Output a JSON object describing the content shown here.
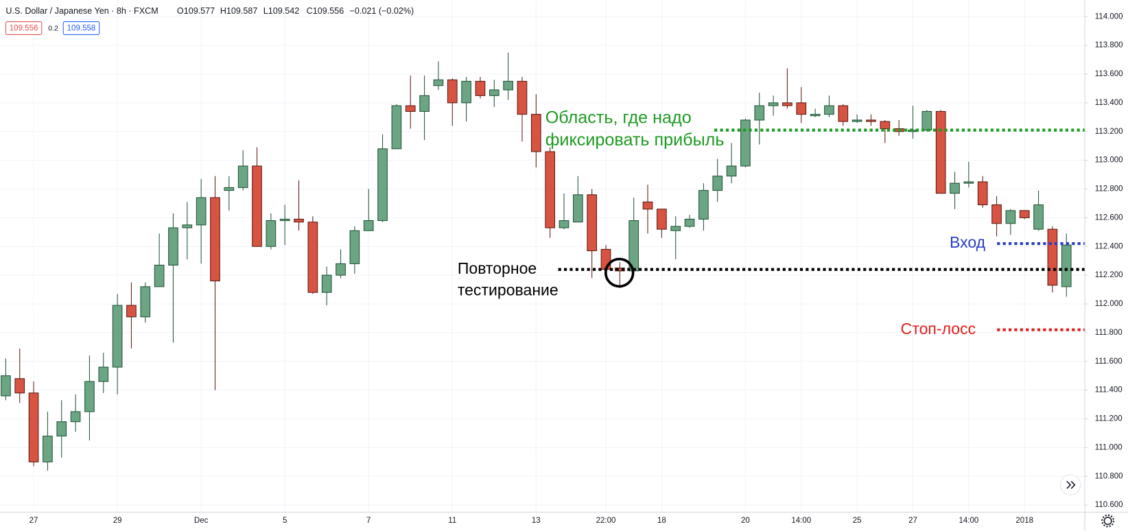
{
  "chart_data": {
    "type": "candlestick",
    "title": "U.S. Dollar / Japanese Yen · 8h · FXCM",
    "ohlc_readout": [
      "O109.577",
      "H109.587",
      "L109.542",
      "C109.556",
      "−0.021 (−0.02%)"
    ],
    "price_badges": [
      "109.556",
      "0.2",
      "109.558"
    ],
    "categories": [
      null,
      null,
      "27",
      null,
      null,
      null,
      null,
      null,
      "29",
      null,
      null,
      null,
      null,
      null,
      "Dec",
      null,
      null,
      null,
      null,
      null,
      "5",
      null,
      null,
      null,
      null,
      null,
      "7",
      null,
      null,
      null,
      null,
      null,
      "11",
      null,
      null,
      null,
      null,
      null,
      "13",
      null,
      null,
      null,
      null,
      "22:00",
      null,
      null,
      null,
      "18",
      null,
      null,
      null,
      null,
      null,
      "20",
      null,
      null,
      null,
      "14:00",
      null,
      null,
      null,
      "25",
      null,
      null,
      null,
      "27",
      null,
      null,
      null,
      "14:00",
      null,
      null,
      null,
      "2018",
      null,
      null,
      null
    ],
    "open": [
      111.36,
      111.48,
      111.38,
      110.9,
      111.08,
      111.18,
      111.25,
      111.46,
      111.56,
      111.99,
      111.91,
      112.12,
      112.27,
      112.53,
      112.55,
      112.74,
      112.79,
      112.81,
      112.96,
      112.4,
      112.58,
      112.59,
      112.57,
      112.08,
      112.2,
      112.28,
      112.51,
      112.58,
      113.08,
      113.38,
      113.34,
      113.52,
      113.56,
      113.4,
      113.55,
      113.45,
      113.49,
      113.55,
      113.32,
      113.06,
      112.53,
      112.57,
      112.76,
      112.38,
      112.25,
      112.23,
      112.71,
      112.66,
      112.51,
      112.54,
      112.59,
      112.79,
      112.89,
      112.96,
      113.28,
      113.38,
      113.4,
      113.4,
      113.31,
      113.32,
      113.38,
      113.27,
      113.28,
      113.27,
      113.22,
      113.2,
      113.21,
      113.34,
      112.77,
      112.84,
      112.85,
      112.69,
      112.56,
      112.65,
      112.52,
      112.52,
      112.12
    ],
    "high": [
      111.62,
      111.69,
      111.46,
      111.25,
      111.33,
      111.37,
      111.64,
      111.66,
      112.07,
      112.15,
      112.15,
      112.49,
      112.63,
      112.71,
      112.87,
      112.89,
      112.89,
      113.07,
      113.09,
      112.63,
      112.69,
      112.86,
      112.61,
      112.26,
      112.38,
      112.54,
      112.8,
      113.18,
      113.39,
      113.59,
      113.59,
      113.69,
      113.57,
      113.58,
      113.58,
      113.56,
      113.75,
      113.58,
      113.46,
      113.09,
      112.77,
      112.89,
      112.8,
      112.41,
      112.29,
      112.74,
      112.83,
      112.66,
      112.61,
      112.62,
      112.84,
      113.01,
      113.12,
      113.29,
      113.47,
      113.45,
      113.64,
      113.51,
      113.36,
      113.45,
      113.39,
      113.32,
      113.32,
      113.28,
      113.28,
      113.38,
      113.35,
      113.35,
      112.92,
      112.99,
      112.89,
      112.75,
      112.66,
      112.65,
      112.79,
      112.54,
      112.49
    ],
    "low": [
      111.33,
      111.31,
      110.87,
      110.84,
      110.93,
      111.11,
      111.05,
      111.38,
      111.37,
      111.69,
      111.87,
      112.12,
      111.73,
      112.31,
      112.28,
      111.4,
      112.65,
      112.79,
      112.4,
      112.38,
      112.41,
      112.51,
      112.07,
      111.99,
      112.18,
      112.21,
      112.51,
      112.57,
      113.08,
      113.22,
      113.14,
      113.49,
      113.24,
      113.27,
      113.43,
      113.37,
      113.42,
      113.13,
      112.95,
      112.46,
      112.52,
      112.57,
      112.18,
      112.19,
      112.11,
      112.22,
      112.49,
      112.46,
      112.31,
      112.53,
      112.51,
      112.71,
      112.84,
      112.95,
      113.11,
      113.31,
      113.36,
      113.26,
      113.3,
      113.3,
      113.24,
      113.26,
      113.24,
      113.12,
      113.17,
      113.15,
      113.2,
      112.77,
      112.66,
      112.81,
      112.67,
      112.47,
      112.48,
      112.59,
      112.51,
      112.08,
      112.05
    ],
    "close": [
      111.5,
      111.38,
      110.9,
      111.08,
      111.18,
      111.25,
      111.46,
      111.56,
      111.99,
      111.91,
      112.12,
      112.27,
      112.53,
      112.55,
      112.74,
      112.16,
      112.81,
      112.96,
      112.4,
      112.58,
      112.59,
      112.57,
      112.08,
      112.2,
      112.28,
      112.51,
      112.58,
      113.08,
      113.38,
      113.34,
      113.45,
      113.56,
      113.4,
      113.55,
      113.45,
      113.49,
      113.55,
      113.32,
      113.06,
      112.53,
      112.58,
      112.76,
      112.37,
      112.24,
      112.23,
      112.58,
      112.66,
      112.52,
      112.54,
      112.59,
      112.79,
      112.89,
      112.96,
      113.28,
      113.38,
      113.4,
      113.38,
      113.32,
      113.32,
      113.38,
      113.27,
      113.28,
      113.27,
      113.22,
      113.2,
      113.21,
      113.34,
      112.77,
      112.84,
      112.85,
      112.69,
      112.56,
      112.65,
      112.6,
      112.69,
      112.13,
      112.41
    ],
    "up_color": "#6ba583",
    "down_color": "#d75442",
    "up_border_color": "#225437",
    "down_border_color": "#5b1a13",
    "ylim": [
      110.6,
      114.0
    ],
    "yticks": [
      {
        "value": 110.6,
        "label": "110.600"
      },
      {
        "value": 110.8,
        "label": "110.800"
      },
      {
        "value": 111.0,
        "label": "111.000"
      },
      {
        "value": 111.2,
        "label": "111.200"
      },
      {
        "value": 111.4,
        "label": "111.400"
      },
      {
        "value": 111.6,
        "label": "111.600"
      },
      {
        "value": 111.8,
        "label": "111.800"
      },
      {
        "value": 112.0,
        "label": "112.000"
      },
      {
        "value": 112.2,
        "label": "112.200"
      },
      {
        "value": 112.4,
        "label": "112.400"
      },
      {
        "value": 112.6,
        "label": "112.600"
      },
      {
        "value": 112.8,
        "label": "112.800"
      },
      {
        "value": 113.0,
        "label": "113.000"
      },
      {
        "value": 113.2,
        "label": "113.200"
      },
      {
        "value": 113.4,
        "label": "113.400"
      },
      {
        "value": 113.6,
        "label": "113.600"
      },
      {
        "value": 113.8,
        "label": "113.800"
      },
      {
        "value": 114.0,
        "label": "114.000"
      }
    ],
    "grid": true,
    "annotations": [
      {
        "lines": [
          "Область, где надо",
          "фиксировать прибыль"
        ],
        "level": 113.21,
        "color": "#1e9a22"
      },
      {
        "lines": [
          "Повторное",
          "тестирование"
        ],
        "level": 112.24,
        "color": "#000000"
      },
      {
        "lines": [
          "Вход"
        ],
        "level": 112.42,
        "color": "#2a3cc8"
      },
      {
        "lines": [
          "Стоп-лосс"
        ],
        "level": 111.82,
        "color": "#e31b1b"
      }
    ]
  }
}
